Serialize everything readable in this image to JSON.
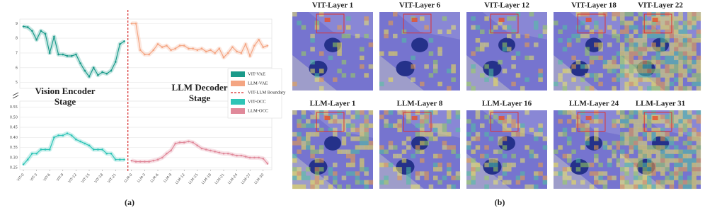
{
  "chart_data": [
    {
      "type": "line",
      "ylim": [
        4.6,
        9.3
      ],
      "yticks": [
        5,
        6,
        7,
        8,
        9
      ],
      "grid": true,
      "series": [
        {
          "name": "VIT-VAE",
          "color": "#1a9a8a",
          "values": [
            8.8,
            8.75,
            8.5,
            7.9,
            8.5,
            8.3,
            7.0,
            8.1,
            6.9,
            6.9,
            6.8,
            6.8,
            6.9,
            6.3,
            5.8,
            5.4,
            6.0,
            5.5,
            5.7,
            5.6,
            5.8,
            6.4,
            7.6,
            7.8,
            null,
            null,
            null,
            null,
            null,
            null,
            null,
            null,
            null,
            null,
            null,
            null,
            null,
            null,
            null,
            null,
            null,
            null,
            null,
            null,
            null,
            null,
            null,
            null,
            null,
            null,
            null,
            null,
            null,
            null,
            null,
            null
          ]
        },
        {
          "name": "LLM-VAE",
          "color": "#f4a582",
          "values": [
            null,
            null,
            null,
            null,
            null,
            null,
            null,
            null,
            null,
            null,
            null,
            null,
            null,
            null,
            null,
            null,
            null,
            null,
            null,
            null,
            null,
            null,
            null,
            null,
            9.0,
            9.0,
            7.2,
            6.9,
            6.9,
            7.2,
            7.6,
            7.4,
            7.5,
            7.2,
            7.3,
            7.5,
            7.5,
            7.3,
            7.3,
            7.2,
            7.3,
            7.1,
            7.2,
            7.0,
            7.3,
            6.7,
            7.0,
            7.4,
            7.1,
            7.0,
            7.6,
            6.8,
            7.5,
            7.9,
            7.4,
            7.5
          ]
        }
      ],
      "boundary": {
        "name": "VIT-LLM Boundary",
        "color": "#d62728"
      },
      "annotations": [
        [
          "Vision Encoder",
          "Stage"
        ],
        [
          "LLM Decoder",
          "Stage"
        ]
      ]
    },
    {
      "type": "line",
      "categories": [
        "VIT-0",
        null,
        null,
        "VIT-3",
        null,
        null,
        "VIT-6",
        null,
        null,
        "VIT-9",
        null,
        null,
        "VIT-12",
        null,
        null,
        "VIT-15",
        null,
        null,
        "VIT-18",
        null,
        null,
        "VIT-21",
        null,
        null,
        "LLM-0",
        null,
        null,
        "LLM-3",
        null,
        null,
        "LLM-6",
        null,
        null,
        "LLM-9",
        null,
        null,
        "LLM-12",
        null,
        null,
        "LLM-15",
        null,
        null,
        "LLM-18",
        null,
        null,
        "LLM-21",
        null,
        null,
        "LLM-24",
        null,
        null,
        "LLM-27",
        null,
        null,
        "LLM-30",
        null
      ],
      "ylim": [
        0.24,
        0.58
      ],
      "yticks": [
        0.25,
        {
          "value": 0.3,
          "label": "0.30"
        },
        0.35,
        {
          "value": 0.4,
          "label": "0.40"
        },
        0.45,
        {
          "value": 0.5,
          "label": "0.50"
        },
        0.55
      ],
      "grid": true,
      "series": [
        {
          "name": "VIT-OCC",
          "color": "#2ec4b6",
          "values": [
            0.266,
            0.29,
            0.32,
            0.32,
            0.34,
            0.34,
            0.34,
            0.4,
            0.41,
            0.41,
            0.42,
            0.41,
            0.39,
            0.38,
            0.37,
            0.36,
            0.34,
            0.34,
            0.34,
            0.32,
            0.32,
            0.29,
            0.29,
            0.29,
            null,
            null,
            null,
            null,
            null,
            null,
            null,
            null,
            null,
            null,
            null,
            null,
            null,
            null,
            null,
            null,
            null,
            null,
            null,
            null,
            null,
            null,
            null,
            null,
            null,
            null,
            null,
            null,
            null,
            null,
            null,
            null
          ]
        },
        {
          "name": "LLM-OCC",
          "color": "#e0899a",
          "values": [
            null,
            null,
            null,
            null,
            null,
            null,
            null,
            null,
            null,
            null,
            null,
            null,
            null,
            null,
            null,
            null,
            null,
            null,
            null,
            null,
            null,
            null,
            null,
            null,
            0.285,
            0.28,
            0.28,
            0.28,
            0.28,
            0.285,
            0.29,
            0.3,
            0.32,
            0.335,
            0.37,
            0.375,
            0.375,
            0.38,
            0.375,
            0.36,
            0.345,
            0.34,
            0.335,
            0.33,
            0.325,
            0.32,
            0.32,
            0.315,
            0.31,
            0.31,
            0.305,
            0.3,
            0.3,
            0.3,
            0.295,
            0.27
          ]
        }
      ],
      "caption": "(a)"
    }
  ],
  "heatmaps": {
    "caption": "(b)",
    "rows": [
      [
        "VIT-Layer 1",
        "VIT-Layer 6",
        "VIT-Layer 12",
        "VIT-Layer 18",
        "VIT-Layer 22"
      ],
      [
        "LLM-Layer 1",
        "LLM-Layer 8",
        "LLM-Layer 16",
        "LLM-Layer 24",
        "LLM-Layer 31"
      ]
    ]
  }
}
